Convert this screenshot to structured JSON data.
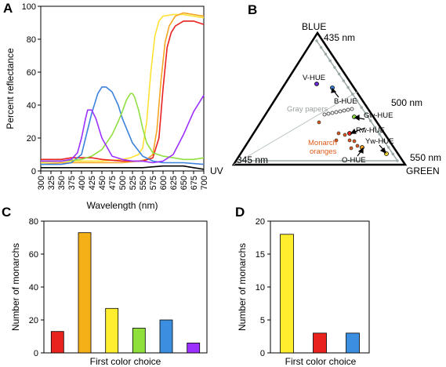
{
  "panels": {
    "a": "A",
    "b": "B",
    "c": "C",
    "d": "D"
  },
  "chart_data": [
    {
      "type": "line",
      "panel": "A",
      "xlabel": "Wavelength (nm)",
      "ylabel": "Percent reflectance",
      "xlim": [
        300,
        700
      ],
      "ylim": [
        0,
        100
      ],
      "xticks": [
        300,
        325,
        350,
        375,
        400,
        425,
        450,
        475,
        500,
        525,
        550,
        575,
        600,
        625,
        650,
        675,
        700
      ],
      "yticks": [
        0,
        20,
        40,
        60,
        80,
        100
      ],
      "grid": false,
      "series": [
        {
          "color": "#ffe135",
          "x": [
            300,
            350,
            400,
            450,
            500,
            520,
            540,
            550,
            560,
            570,
            580,
            590,
            600,
            625,
            650,
            675,
            700
          ],
          "y": [
            5,
            6,
            6,
            6,
            7,
            8,
            10,
            14,
            30,
            60,
            82,
            91,
            94,
            95,
            95,
            94,
            93
          ]
        },
        {
          "color": "#f6a623",
          "x": [
            300,
            350,
            400,
            450,
            500,
            540,
            560,
            575,
            585,
            595,
            605,
            615,
            630,
            650,
            675,
            700
          ],
          "y": [
            4,
            5,
            5,
            5,
            5,
            6,
            7,
            10,
            25,
            55,
            78,
            88,
            94,
            96,
            95,
            94
          ]
        },
        {
          "color": "#e8231f",
          "x": [
            300,
            350,
            375,
            400,
            425,
            450,
            500,
            550,
            575,
            590,
            600,
            610,
            620,
            630,
            650,
            675,
            700
          ],
          "y": [
            7,
            7,
            8,
            8,
            8,
            7,
            6,
            6,
            8,
            20,
            50,
            75,
            84,
            88,
            91,
            91,
            89
          ]
        },
        {
          "color": "#3c82dc",
          "x": [
            300,
            350,
            375,
            400,
            410,
            425,
            440,
            450,
            460,
            475,
            490,
            500,
            525,
            550,
            575,
            600,
            625,
            650,
            700
          ],
          "y": [
            4,
            4,
            5,
            10,
            20,
            35,
            47,
            51,
            51,
            48,
            40,
            32,
            17,
            9,
            6,
            5,
            5,
            5,
            4
          ]
        },
        {
          "color": "#90e041",
          "x": [
            300,
            350,
            400,
            425,
            450,
            475,
            490,
            500,
            510,
            520,
            525,
            530,
            540,
            550,
            560,
            575,
            600,
            625,
            650,
            675,
            700
          ],
          "y": [
            6,
            6,
            7,
            9,
            13,
            22,
            30,
            36,
            43,
            47,
            47,
            45,
            37,
            26,
            17,
            11,
            9,
            8,
            7,
            7,
            8
          ]
        },
        {
          "color": "#9b30ff",
          "x": [
            300,
            350,
            375,
            390,
            400,
            410,
            415,
            425,
            435,
            450,
            475,
            500,
            525,
            550,
            575,
            600,
            625,
            650,
            675,
            700
          ],
          "y": [
            6,
            6,
            7,
            11,
            20,
            32,
            37,
            37,
            32,
            20,
            9,
            7,
            6,
            6,
            5,
            6,
            10,
            22,
            36,
            46
          ]
        },
        {
          "color": "#000000",
          "x": [
            300,
            350,
            400,
            450,
            500,
            550,
            600,
            625,
            650,
            675,
            700
          ],
          "y": [
            2,
            2,
            2,
            2,
            2,
            2,
            3,
            3,
            3,
            2,
            1
          ]
        }
      ]
    },
    {
      "type": "scatter",
      "panel": "B",
      "vertices": {
        "top": [
          "BLUE",
          "435 nm"
        ],
        "right": [
          "550 nm",
          "GREEN"
        ],
        "left": [
          "UV",
          "345 nm"
        ]
      },
      "side_labels": {
        "right_side": "500 nm"
      },
      "annotations": [
        "V-HUE",
        "B-HUE",
        "Gw-HUE",
        "Rw-HUE",
        "Yw-HUE",
        "O-HUE",
        "Gray papers",
        "Monarch oranges"
      ]
    },
    {
      "type": "bar",
      "panel": "C",
      "xlabel": "First color choice",
      "ylabel": "Number of monarchs",
      "ylim": [
        0,
        80
      ],
      "yticks": [
        0,
        20,
        40,
        60,
        80
      ],
      "values": [
        13,
        73,
        27,
        15,
        20,
        6
      ],
      "colors": [
        "#e8231f",
        "#f6b017",
        "#ffee2e",
        "#8fe03a",
        "#3c8fe0",
        "#9b30ff"
      ]
    },
    {
      "type": "bar",
      "panel": "D",
      "xlabel": "First color choice",
      "ylabel": "Number of monarchs",
      "ylim": [
        0,
        20
      ],
      "yticks": [
        0,
        5,
        10,
        15,
        20
      ],
      "values": [
        18,
        3,
        3
      ],
      "colors": [
        "#ffee2e",
        "#e8231f",
        "#3c8fe0"
      ]
    }
  ]
}
